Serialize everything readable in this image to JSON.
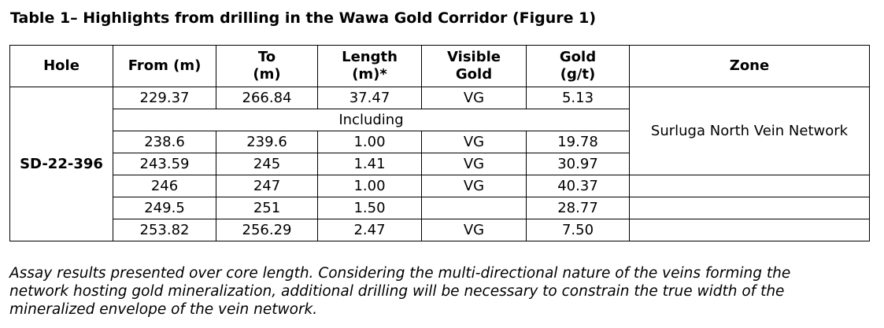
{
  "title": "Table 1– Highlights from drilling in the Wawa Gold Corridor (Figure 1)",
  "headers": {
    "hole": "Hole",
    "from": "From (m)",
    "to_l1": "To",
    "to_l2": "(m)",
    "length_l1": "Length",
    "length_l2": "(m)*",
    "vg_l1": "Visible",
    "vg_l2": "Gold",
    "gold_l1": "Gold",
    "gold_l2": "(g/t)",
    "zone": "Zone"
  },
  "hole_id": "SD-22-396",
  "zone_name": "Surluga North Vein Network",
  "including_label": "Including",
  "rows": [
    {
      "from": "229.37",
      "to": "266.84",
      "length": "37.47",
      "vg": "VG",
      "gold": "5.13"
    },
    {
      "from": "238.6",
      "to": "239.6",
      "length": "1.00",
      "vg": "VG",
      "gold": "19.78"
    },
    {
      "from": "243.59",
      "to": "245",
      "length": "1.41",
      "vg": "VG",
      "gold": "30.97"
    },
    {
      "from": "246",
      "to": "247",
      "length": "1.00",
      "vg": "VG",
      "gold": "40.37"
    },
    {
      "from": "249.5",
      "to": "251",
      "length": "1.50",
      "vg": "",
      "gold": "28.77"
    },
    {
      "from": "253.82",
      "to": "256.29",
      "length": "2.47",
      "vg": "VG",
      "gold": "7.50"
    }
  ],
  "note_lines": [
    "Assay results presented over core length. Considering the multi-directional nature of the veins forming the",
    "network hosting gold mineralization, additional drilling will be necessary to constrain the true width of the",
    "mineralized envelope of the vein network."
  ]
}
